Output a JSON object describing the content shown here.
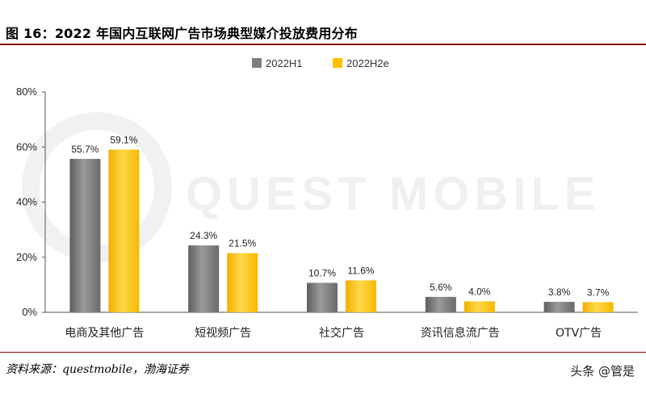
{
  "title": "图 16：2022 年国内互联网广告市场典型媒介投放费用分布",
  "source": "资料来源：questmobile，渤海证券",
  "signature": "头条 @管是",
  "watermark": "QUEST MOBILE",
  "chart_data": {
    "type": "bar",
    "categories": [
      "电商及其他广告",
      "短视频广告",
      "社交广告",
      "资讯信息流广告",
      "OTV广告"
    ],
    "series": [
      {
        "name": "2022H1",
        "values": [
          55.7,
          24.3,
          10.7,
          5.6,
          3.8
        ],
        "labels": [
          "55.7%",
          "24.3%",
          "10.7%",
          "5.6%",
          "3.8%"
        ],
        "color": "#7f7f7f"
      },
      {
        "name": "2022H2e",
        "values": [
          59.1,
          21.5,
          11.6,
          4.0,
          3.7
        ],
        "labels": [
          "59.1%",
          "21.5%",
          "11.6%",
          "4.0%",
          "3.7%"
        ],
        "color": "#ffc000"
      }
    ],
    "y_ticks": [
      "0%",
      "20%",
      "40%",
      "60%",
      "80%"
    ],
    "ylim": [
      0,
      80
    ],
    "legend_position": "top-center",
    "grid": false
  }
}
